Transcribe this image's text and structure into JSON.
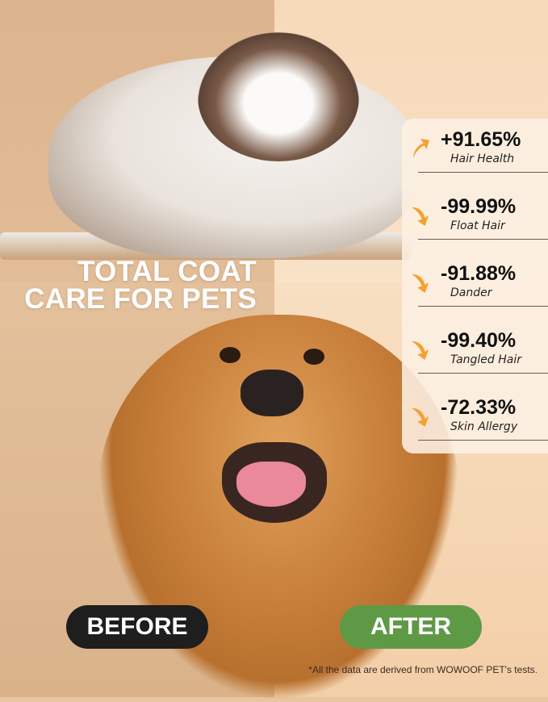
{
  "headline": {
    "line1": "TOTAL COAT",
    "line2": "CARE FOR PETS"
  },
  "stats": [
    {
      "value": "+91.65%",
      "label": "Hair Health",
      "direction": "up"
    },
    {
      "value": "-99.99%",
      "label": "Float Hair",
      "direction": "down"
    },
    {
      "value": "-91.88%",
      "label": "Dander",
      "direction": "down"
    },
    {
      "value": "-99.40%",
      "label": "Tangled Hair",
      "direction": "down"
    },
    {
      "value": "-72.33%",
      "label": "Skin Allergy",
      "direction": "down"
    }
  ],
  "labels": {
    "before": "BEFORE",
    "after": "AFTER"
  },
  "footnote": "*All the data are derived from WOWOOF PET's tests.",
  "colors": {
    "before": "#1e1e1e",
    "after": "#5e9a46",
    "arrow": "#f3a232"
  }
}
